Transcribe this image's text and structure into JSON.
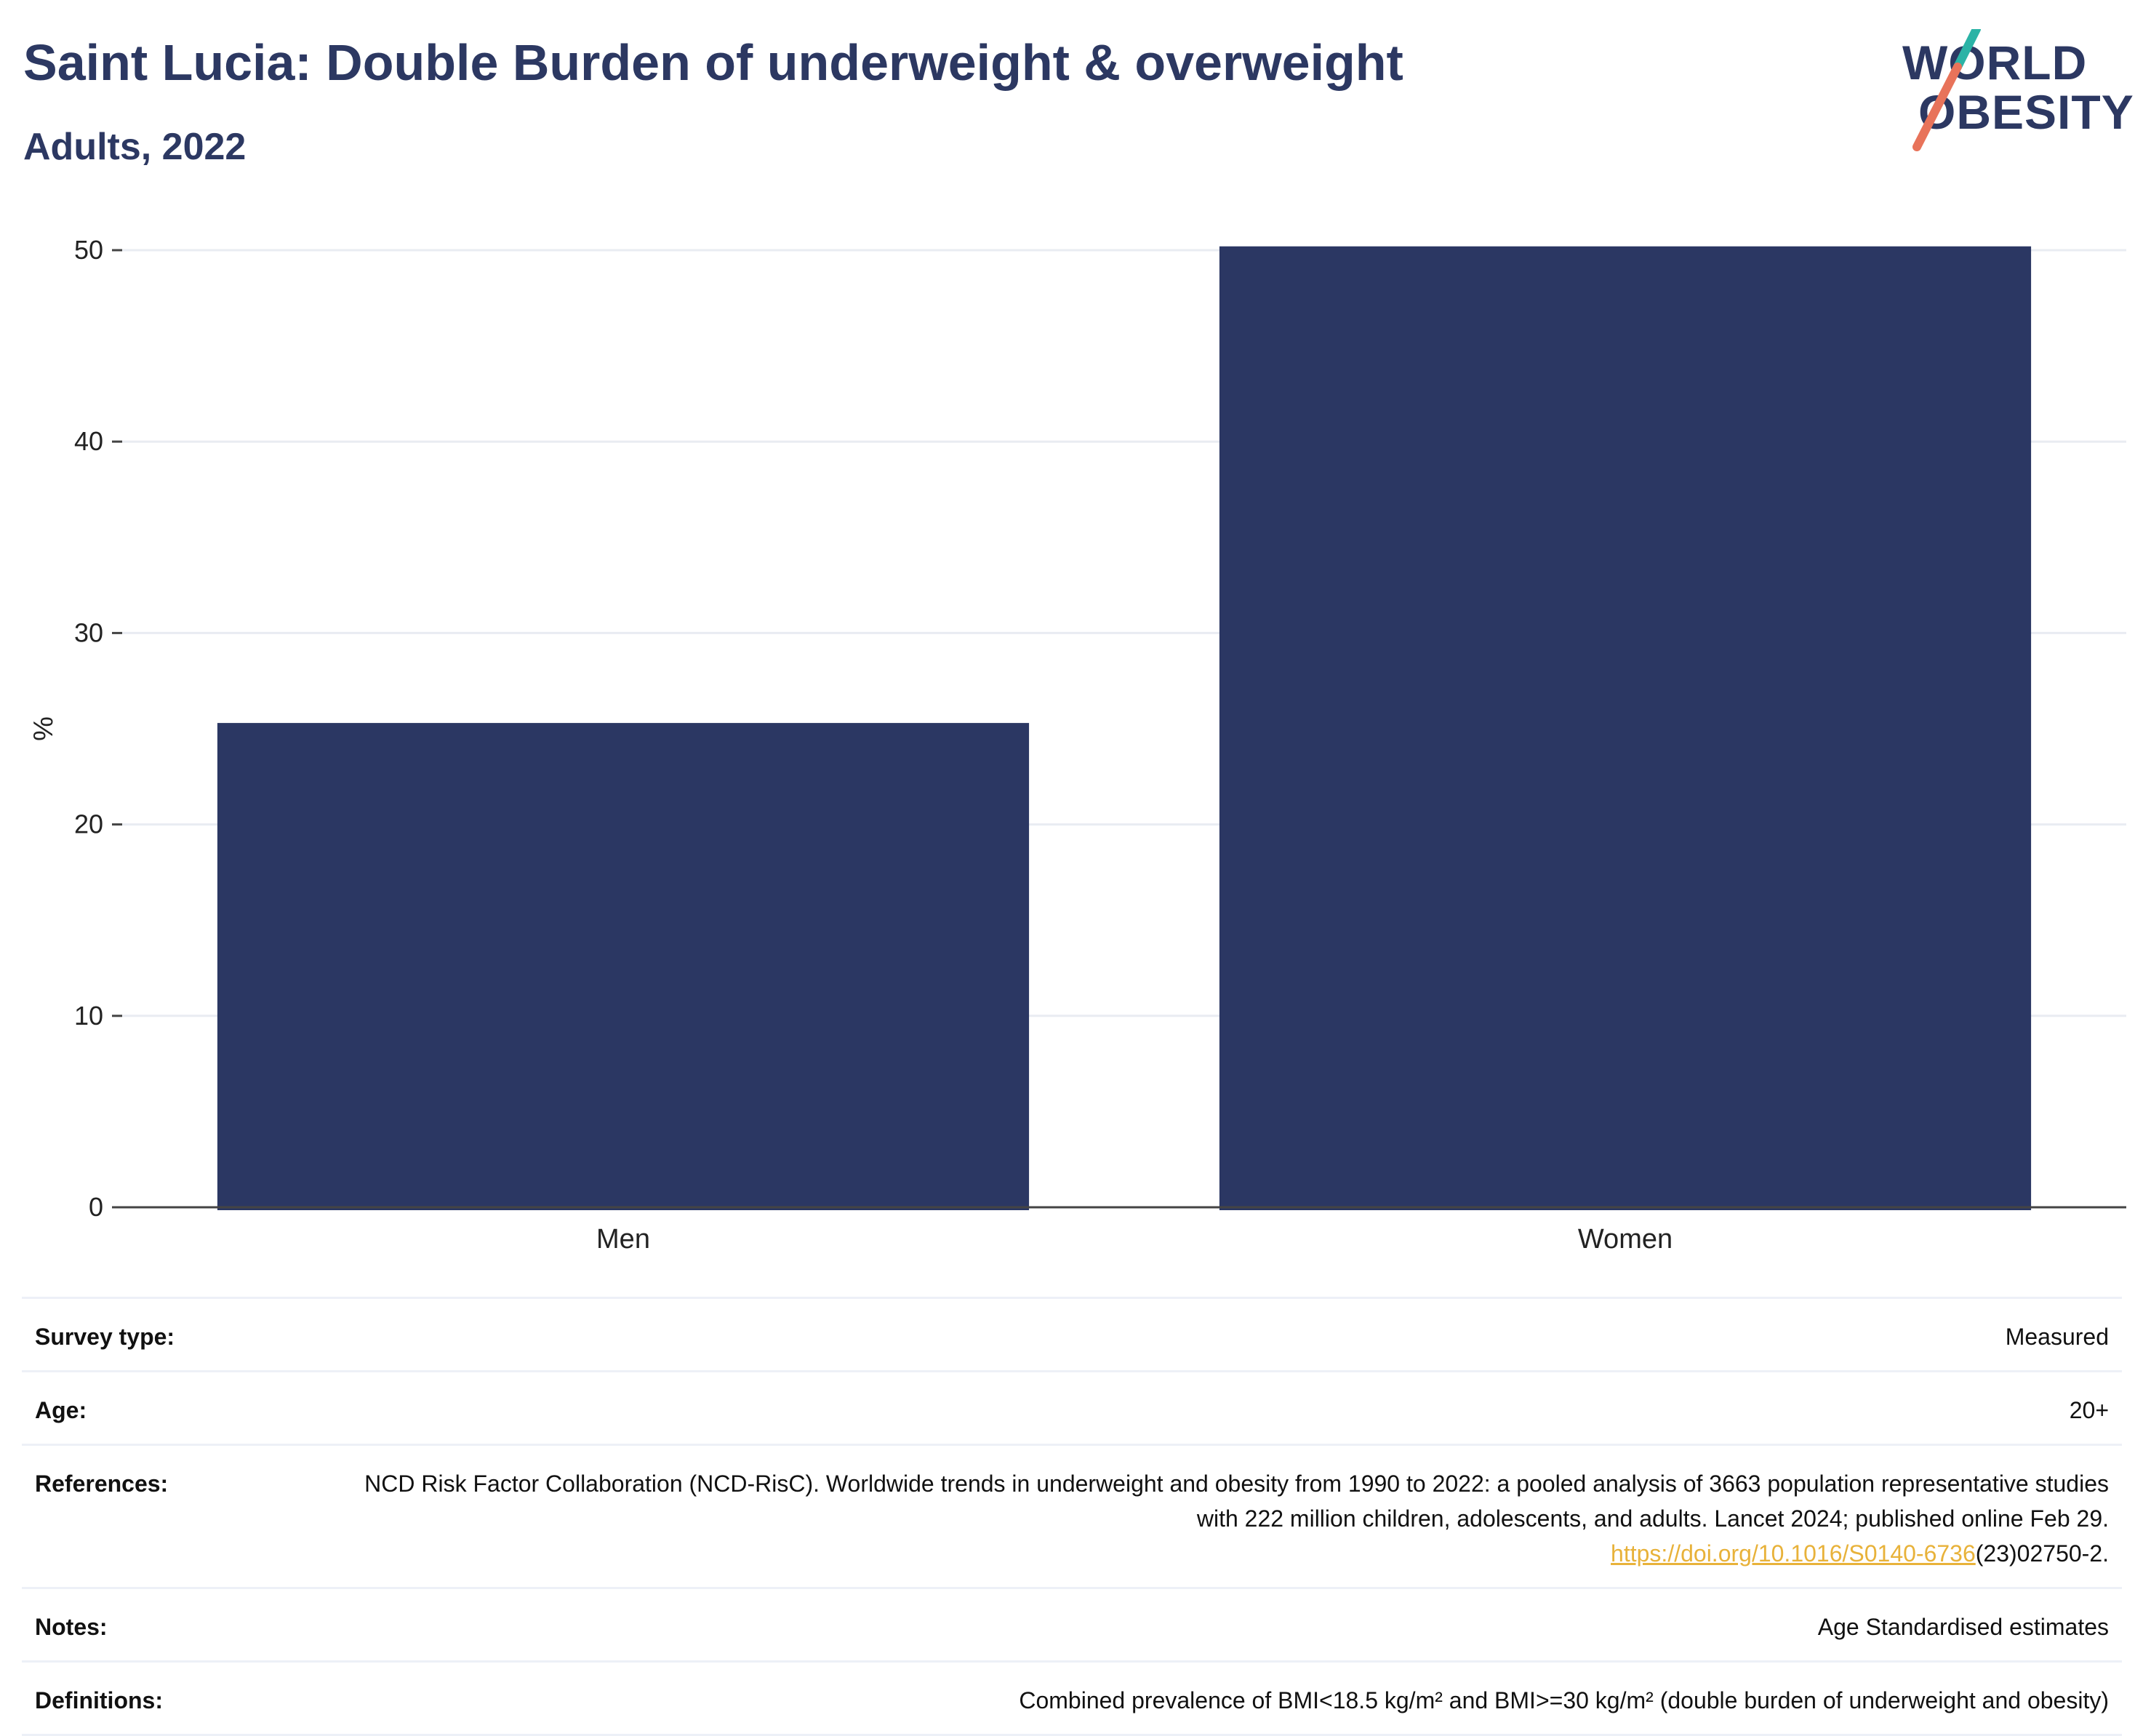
{
  "header": {
    "title": "Saint Lucia: Double Burden of underweight & overweight",
    "subtitle": "Adults, 2022"
  },
  "logo": {
    "line1": "WORLD",
    "line2": "OBESITY",
    "colors": {
      "text": "#2c3862",
      "slash_top": "#2bb3a6",
      "slash_bottom": "#e8735a"
    }
  },
  "chart_data": {
    "type": "bar",
    "categories": [
      "Men",
      "Women"
    ],
    "values": [
      25.3,
      50.2
    ],
    "ylabel": "%",
    "xlabel": "",
    "ylim": [
      0,
      50
    ],
    "yticks": [
      0,
      10,
      20,
      30,
      40,
      50
    ],
    "grid": true,
    "bar_color": "#2b3763"
  },
  "meta": {
    "rows": [
      {
        "label": "Survey type:",
        "value": "Measured"
      },
      {
        "label": "Age:",
        "value": "20+"
      },
      {
        "label": "References:",
        "value": "NCD Risk Factor Collaboration (NCD-RisC). Worldwide trends in underweight and obesity from 1990 to 2022: a pooled analysis of 3663 population representative studies with 222 million children, adolescents, and adults. Lancet 2024; published online Feb 29.",
        "link": "https://doi.org/10.1016/S0140-6736",
        "link_suffix": "(23)02750-2."
      },
      {
        "label": "Notes:",
        "value": "Age Standardised estimates"
      },
      {
        "label": "Definitions:",
        "value": "Combined prevalence of BMI<18.5 kg/m² and BMI>=30 kg/m² (double burden of underweight and obesity)"
      }
    ]
  }
}
